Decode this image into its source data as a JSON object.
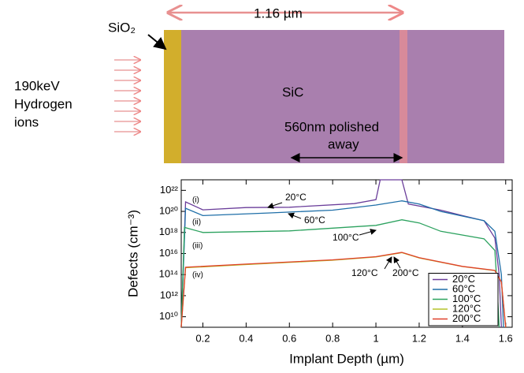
{
  "diagram": {
    "width_label": "1.16 µm",
    "oxide_label": "SiO₂",
    "ion_label": [
      "190keV",
      "Hydrogen",
      "ions"
    ],
    "substrate_label": "SiC",
    "polish_label": [
      "560nm polished",
      "away"
    ]
  },
  "chart_data": {
    "type": "line",
    "xlabel": "Implant Depth (µm)",
    "ylabel": "Defects (cm⁻³)",
    "xlim": [
      0.1,
      1.63
    ],
    "ylim": [
      1000000000.0,
      1e+23
    ],
    "yscale": "log",
    "xticks": [
      0.2,
      0.4,
      0.6,
      0.8,
      1.0,
      1.2,
      1.4,
      1.6
    ],
    "yticks": [
      {
        "value": 10000000000.0,
        "label": "10¹⁰"
      },
      {
        "value": 1000000000000.0,
        "label": "10¹²"
      },
      {
        "value": 100000000000000.0,
        "label": "10¹⁴"
      },
      {
        "value": 1e+16,
        "label": "10¹⁶"
      },
      {
        "value": 1e+18,
        "label": "10¹⁸"
      },
      {
        "value": 1e+20,
        "label": "10²⁰"
      },
      {
        "value": 1e+22,
        "label": "10²²"
      }
    ],
    "legend": "lower right",
    "annotations": [
      "(i)",
      "(ii)",
      "(iii)",
      "(iv)",
      "20°C",
      "60°C",
      "100°C",
      "120°C",
      "200°C"
    ],
    "series": [
      {
        "name": "20°C",
        "color": "#6a3d9a",
        "x": [
          0.1,
          0.12,
          0.2,
          0.4,
          0.6,
          0.9,
          1.0,
          1.02,
          1.12,
          1.15,
          1.3,
          1.4,
          1.5,
          1.55,
          1.57,
          1.58
        ],
        "values": [
          1000000000.0,
          8e+20,
          1.4e+20,
          2.3e+20,
          2.5e+20,
          5.5e+20,
          1.3e+21,
          1e+23,
          1e+23,
          5e+20,
          1.3e+20,
          4e+19,
          1.3e+19,
          3e+17,
          100000000000000.0,
          1000000000.0
        ]
      },
      {
        "name": "60°C",
        "color": "#1f6fa8",
        "x": [
          0.1,
          0.12,
          0.2,
          0.5,
          0.8,
          1.0,
          1.12,
          1.2,
          1.3,
          1.5,
          1.55,
          1.58,
          1.59
        ],
        "values": [
          1000000000.0,
          2e+20,
          4e+19,
          7e+19,
          1.3e+20,
          4e+20,
          1e+21,
          5e+20,
          1e+20,
          1.3e+19,
          1.3e+18,
          100000000000000.0,
          1000000000.0
        ]
      },
      {
        "name": "100°C",
        "color": "#2ca25f",
        "x": [
          0.1,
          0.115,
          0.2,
          0.6,
          1.0,
          1.12,
          1.2,
          1.3,
          1.5,
          1.55,
          1.56,
          1.57
        ],
        "values": [
          1000000000.0,
          3e+18,
          1e+18,
          1.4e+18,
          4.7e+18,
          1.6e+19,
          8e+18,
          1.3e+18,
          2.5e+17,
          2e+16,
          10000000000000.0,
          1000000000.0
        ]
      },
      {
        "name": "120°C",
        "color": "#b5c42a",
        "x": [
          0.1,
          0.12,
          0.4,
          0.8,
          1.0,
          1.12,
          1.2,
          1.4,
          1.55,
          1.58,
          1.6
        ],
        "values": [
          1000000000.0,
          450000000000000.0,
          900000000000000.0,
          2300000000000000.0,
          4800000000000000.0,
          1.2e+16,
          3800000000000000.0,
          580000000000000.0,
          240000000000000.0,
          20000000000000.0,
          1000000000.0
        ]
      },
      {
        "name": "200°C",
        "color": "#e0402a",
        "x": [
          0.1,
          0.12,
          0.4,
          0.8,
          1.0,
          1.12,
          1.2,
          1.4,
          1.55,
          1.58,
          1.6
        ],
        "values": [
          1000000000.0,
          500000000000000.0,
          1000000000000000.0,
          2500000000000000.0,
          5000000000000000.0,
          1.3e+16,
          4000000000000000.0,
          600000000000000.0,
          250000000000000.0,
          20000000000000.0,
          1000000000.0
        ]
      }
    ]
  }
}
